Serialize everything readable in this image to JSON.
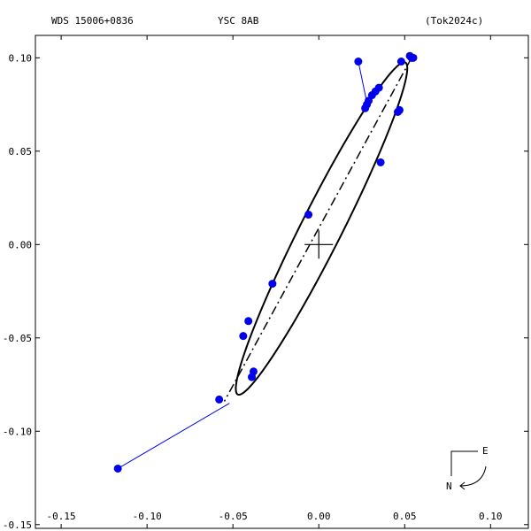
{
  "header": {
    "left": "WDS 15006+0836",
    "center": "YSC   8AB",
    "right": "(Tok2024c)"
  },
  "compass": {
    "east": "E",
    "north": "N"
  },
  "chart_data": {
    "type": "scatter",
    "title": "",
    "xlabel": "",
    "ylabel": "",
    "xlim": [
      -0.165,
      0.122
    ],
    "ylim": [
      -0.152,
      0.112
    ],
    "x_ticks": [
      -0.15,
      -0.1,
      -0.05,
      0.0,
      0.05,
      0.1
    ],
    "x_tick_labels": [
      "-0.15",
      "-0.10",
      "-0.05",
      "0.00",
      "0.05",
      "0.10"
    ],
    "y_ticks": [
      0.1,
      0.05,
      0.0,
      -0.05,
      -0.1,
      -0.15
    ],
    "y_tick_labels": [
      "0.10",
      "0.05",
      "0.00",
      "-0.05",
      "-0.10",
      "-0.15"
    ],
    "grid": false,
    "primary": [
      0.0,
      0.0
    ],
    "orbit_ellipse": {
      "center": [
        0.0016,
        0.0086
      ],
      "semi_major": 0.1014,
      "semi_minor": 0.0117,
      "angle_deg": 61.2,
      "color": "#000000"
    },
    "line_of_nodes": {
      "points": [
        [
          0.054,
          0.1
        ],
        [
          -0.055,
          -0.084
        ]
      ],
      "style": "dash-dot",
      "color": "#000000"
    },
    "observations": {
      "color": "#0000ee",
      "points": [
        [
          0.054,
          0.1
        ],
        [
          0.053,
          0.101
        ],
        [
          0.055,
          0.1
        ],
        [
          0.048,
          0.098
        ],
        [
          0.035,
          0.084
        ],
        [
          0.033,
          0.082
        ],
        [
          0.031,
          0.08
        ],
        [
          0.029,
          0.077
        ],
        [
          0.028,
          0.075
        ],
        [
          0.027,
          0.073
        ],
        [
          0.047,
          0.072
        ],
        [
          0.046,
          0.071
        ],
        [
          0.036,
          0.044
        ],
        [
          -0.006,
          0.016
        ],
        [
          -0.027,
          -0.021
        ],
        [
          -0.041,
          -0.041
        ],
        [
          -0.044,
          -0.049
        ],
        [
          -0.038,
          -0.068
        ],
        [
          -0.039,
          -0.071
        ],
        [
          -0.058,
          -0.083
        ],
        [
          0.023,
          0.098
        ],
        [
          -0.117,
          -0.12
        ]
      ]
    },
    "residuals": {
      "color": "#0000ee",
      "segments": [
        [
          [
            0.023,
            0.098
          ],
          [
            0.028,
            0.076
          ]
        ],
        [
          [
            -0.117,
            -0.12
          ],
          [
            -0.052,
            -0.085
          ]
        ]
      ]
    }
  }
}
